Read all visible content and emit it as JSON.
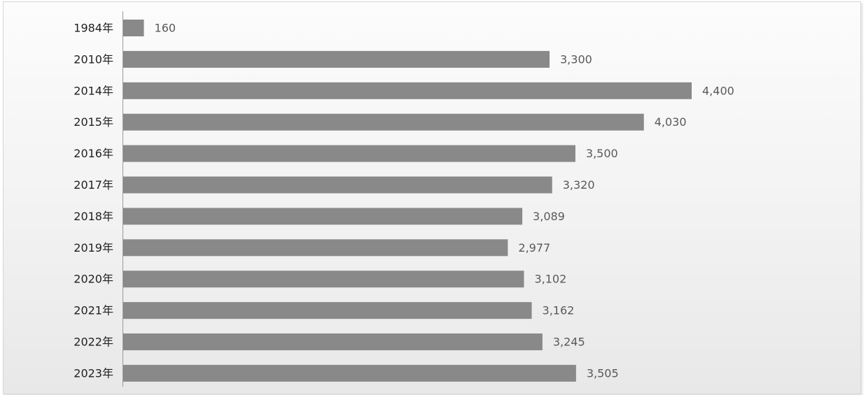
{
  "chart_data": {
    "type": "bar",
    "orientation": "horizontal",
    "title": "",
    "xlabel": "",
    "ylabel": "",
    "categories": [
      "1984年",
      "2010年",
      "2014年",
      "2015年",
      "2016年",
      "2017年",
      "2018年",
      "2019年",
      "2020年",
      "2021年",
      "2022年",
      "2023年"
    ],
    "values": [
      160,
      3300,
      4400,
      4030,
      3500,
      3320,
      3089,
      2977,
      3102,
      3162,
      3245,
      3505
    ],
    "value_labels": [
      "160",
      "3,300",
      "4,400",
      "4,030",
      "3,500",
      "3,320",
      "3,089",
      "2,977",
      "3,102",
      "3,162",
      "3,245",
      "3,505"
    ],
    "xlim": [
      0,
      5800
    ],
    "grid": false,
    "legend": "none",
    "colors": {
      "bar": "#898989",
      "axis": "#9a9a9a",
      "category_text": "#1f1f1f",
      "value_text": "#595959"
    }
  }
}
